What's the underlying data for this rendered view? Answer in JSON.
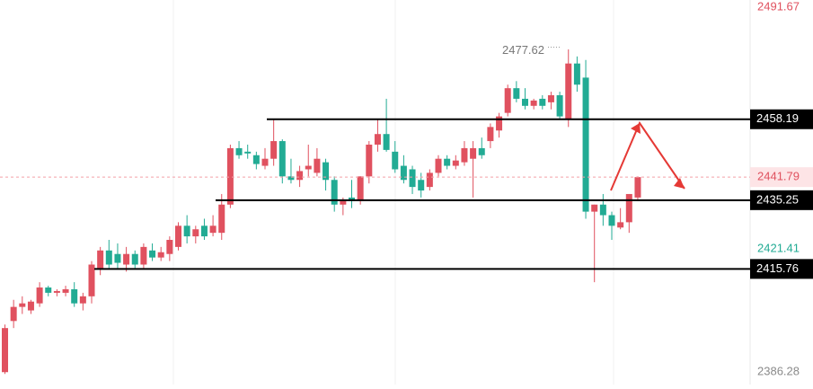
{
  "chart_data": {
    "type": "candlestick",
    "ylim": [
      2383,
      2492
    ],
    "yticks": [
      2386.28,
      2421.41,
      2491.67
    ],
    "ytick_colors": [
      "#8a8a8a",
      "#22ab94",
      "#e0515f"
    ],
    "up_color": "#e0515f",
    "down_color": "#22ab94",
    "open": [
      2386.5,
      2401,
      2405,
      2404,
      2406,
      2410.5,
      2409,
      2409,
      2410,
      2406,
      2408,
      2416,
      2421,
      2420,
      2417,
      2420,
      2417,
      2421,
      2419,
      2420,
      2422,
      2428,
      2425,
      2428,
      2426,
      2426,
      2434,
      2450,
      2449,
      2448,
      2445,
      2447,
      2452,
      2442,
      2441,
      2444,
      2443,
      2446,
      2441,
      2434,
      2436,
      2435,
      2442,
      2451,
      2454,
      2449,
      2445,
      2444,
      2441,
      2439,
      2443,
      2447,
      2445,
      2446,
      2447,
      2450,
      2452,
      2455,
      2460,
      2467,
      2464,
      2462,
      2464,
      2463,
      2465,
      2458,
      2474,
      2470,
      2432,
      2434,
      2431,
      2427.5,
      2429,
      2436
    ],
    "high": [
      2400,
      2407,
      2408,
      2407,
      2412,
      2411,
      2410,
      2411,
      2412,
      2409,
      2418,
      2422,
      2424,
      2423,
      2422,
      2421,
      2423,
      2423,
      2422,
      2425,
      2429,
      2431,
      2428,
      2430,
      2431,
      2437,
      2451,
      2452,
      2451,
      2449,
      2450,
      2458,
      2452.5,
      2447,
      2445,
      2451,
      2450,
      2447,
      2442,
      2436,
      2441,
      2442,
      2452,
      2458,
      2464,
      2452,
      2448,
      2445,
      2443,
      2444,
      2448,
      2448,
      2448,
      2452,
      2452,
      2453,
      2457,
      2460,
      2468,
      2469,
      2467,
      2464,
      2465,
      2466,
      2466,
      2478,
      2476,
      2475,
      2434,
      2437,
      2432,
      2433,
      2437,
      2442
    ],
    "low": [
      2386,
      2399,
      2403,
      2403,
      2405,
      2408,
      2408,
      2408,
      2405,
      2404,
      2406,
      2414,
      2416,
      2416,
      2415,
      2416,
      2416,
      2418,
      2418,
      2418,
      2421,
      2423,
      2423,
      2424,
      2425,
      2424,
      2433,
      2447,
      2447,
      2444,
      2444,
      2445,
      2440,
      2440,
      2439,
      2442,
      2442,
      2438,
      2432,
      2431,
      2433,
      2434,
      2440,
      2449,
      2449,
      2443,
      2440,
      2437,
      2436,
      2438,
      2442,
      2444,
      2444,
      2445,
      2436,
      2447,
      2450,
      2453,
      2459,
      2463,
      2461,
      2461,
      2461,
      2461,
      2458,
      2456,
      2466,
      2430,
      2412,
      2428,
      2424,
      2427,
      2426,
      2435
    ],
    "close": [
      2399,
      2405,
      2406,
      2406.5,
      2410.5,
      2409,
      2409.5,
      2410,
      2406,
      2408,
      2417,
      2421,
      2417,
      2417.5,
      2420,
      2417,
      2422,
      2419,
      2420.5,
      2424,
      2428,
      2425,
      2427,
      2425,
      2428,
      2434,
      2450,
      2448,
      2448.5,
      2445.5,
      2447,
      2452,
      2442,
      2441,
      2443.5,
      2445,
      2447,
      2441,
      2434,
      2435,
      2435,
      2442,
      2451,
      2454,
      2449.5,
      2444,
      2441,
      2439,
      2438,
      2443,
      2447,
      2445,
      2446.5,
      2450,
      2450,
      2448,
      2456,
      2459,
      2467,
      2464,
      2462,
      2463.5,
      2462,
      2465,
      2459,
      2474,
      2468,
      2432,
      2434,
      2431,
      2428,
      2429,
      2437,
      2441.79
    ],
    "levels": [
      2458.19,
      2435.25,
      2415.76
    ],
    "current_price": 2441.79,
    "high_annotation": {
      "value": 2477.62,
      "label": "2477.62"
    }
  }
}
